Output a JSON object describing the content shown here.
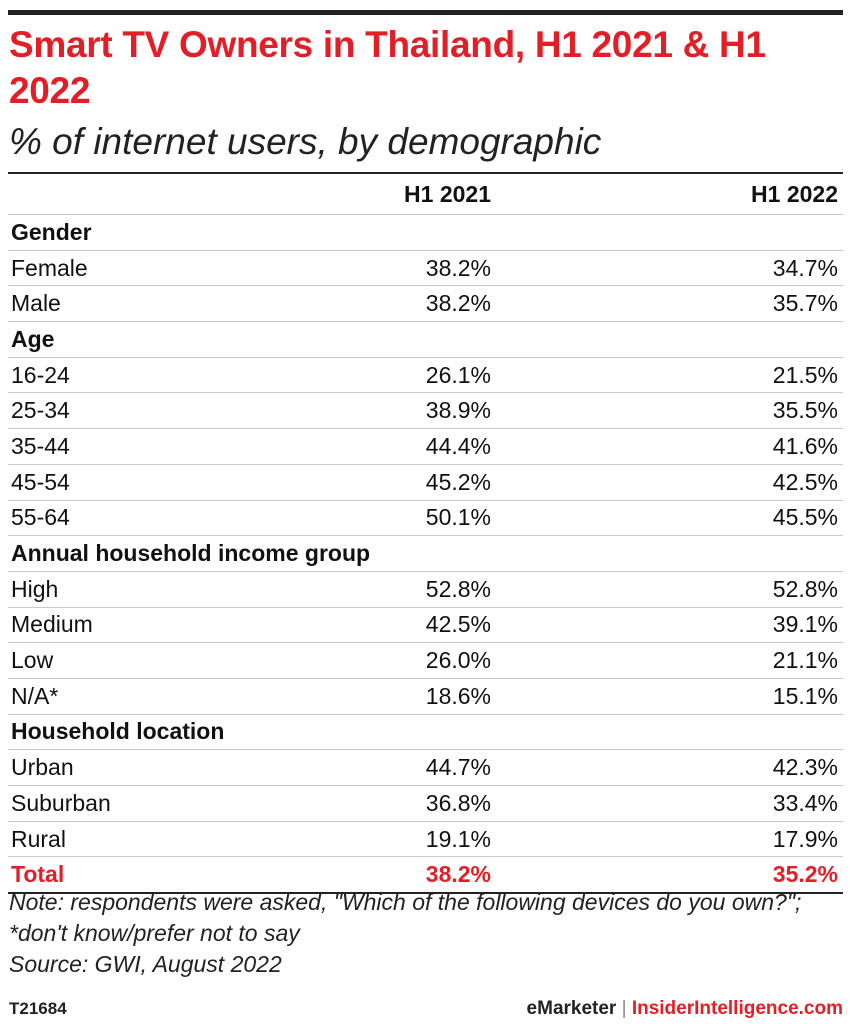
{
  "title": "Smart TV Owners in Thailand, H1 2021 & H1 2022",
  "subtitle": "% of internet users, by demographic",
  "chart_data": {
    "type": "table",
    "columns": [
      "",
      "H1 2021",
      "H1 2022"
    ],
    "rows": [
      {
        "label": "Gender",
        "group": true
      },
      {
        "label": "Female",
        "v1": "38.2%",
        "v2": "34.7%"
      },
      {
        "label": "Male",
        "v1": "38.2%",
        "v2": "35.7%"
      },
      {
        "label": "Age",
        "group": true
      },
      {
        "label": "16-24",
        "v1": "26.1%",
        "v2": "21.5%"
      },
      {
        "label": "25-34",
        "v1": "38.9%",
        "v2": "35.5%"
      },
      {
        "label": "35-44",
        "v1": "44.4%",
        "v2": "41.6%"
      },
      {
        "label": "45-54",
        "v1": "45.2%",
        "v2": "42.5%"
      },
      {
        "label": "55-64",
        "v1": "50.1%",
        "v2": "45.5%"
      },
      {
        "label": "Annual household income group",
        "group": true
      },
      {
        "label": "High",
        "v1": "52.8%",
        "v2": "52.8%"
      },
      {
        "label": "Medium",
        "v1": "42.5%",
        "v2": "39.1%"
      },
      {
        "label": "Low",
        "v1": "26.0%",
        "v2": "21.1%"
      },
      {
        "label": "N/A*",
        "v1": "18.6%",
        "v2": "15.1%"
      },
      {
        "label": "Household location",
        "group": true
      },
      {
        "label": "Urban",
        "v1": "44.7%",
        "v2": "42.3%"
      },
      {
        "label": "Suburban",
        "v1": "36.8%",
        "v2": "33.4%"
      },
      {
        "label": "Rural",
        "v1": "19.1%",
        "v2": "17.9%"
      },
      {
        "label": "Total",
        "v1": "38.2%",
        "v2": "35.2%",
        "total": true
      }
    ]
  },
  "note": "Note: respondents were asked, \"Which of the following devices do you own?\"; *don't know/prefer not to say",
  "source": "Source: GWI, August 2022",
  "footer": {
    "id": "T21684",
    "brand_left": "eMarketer",
    "separator": "|",
    "brand_right": "InsiderIntelligence.com"
  },
  "colors": {
    "accent": "#e21e26",
    "text": "#111111",
    "rule": "#c9c9c9"
  }
}
